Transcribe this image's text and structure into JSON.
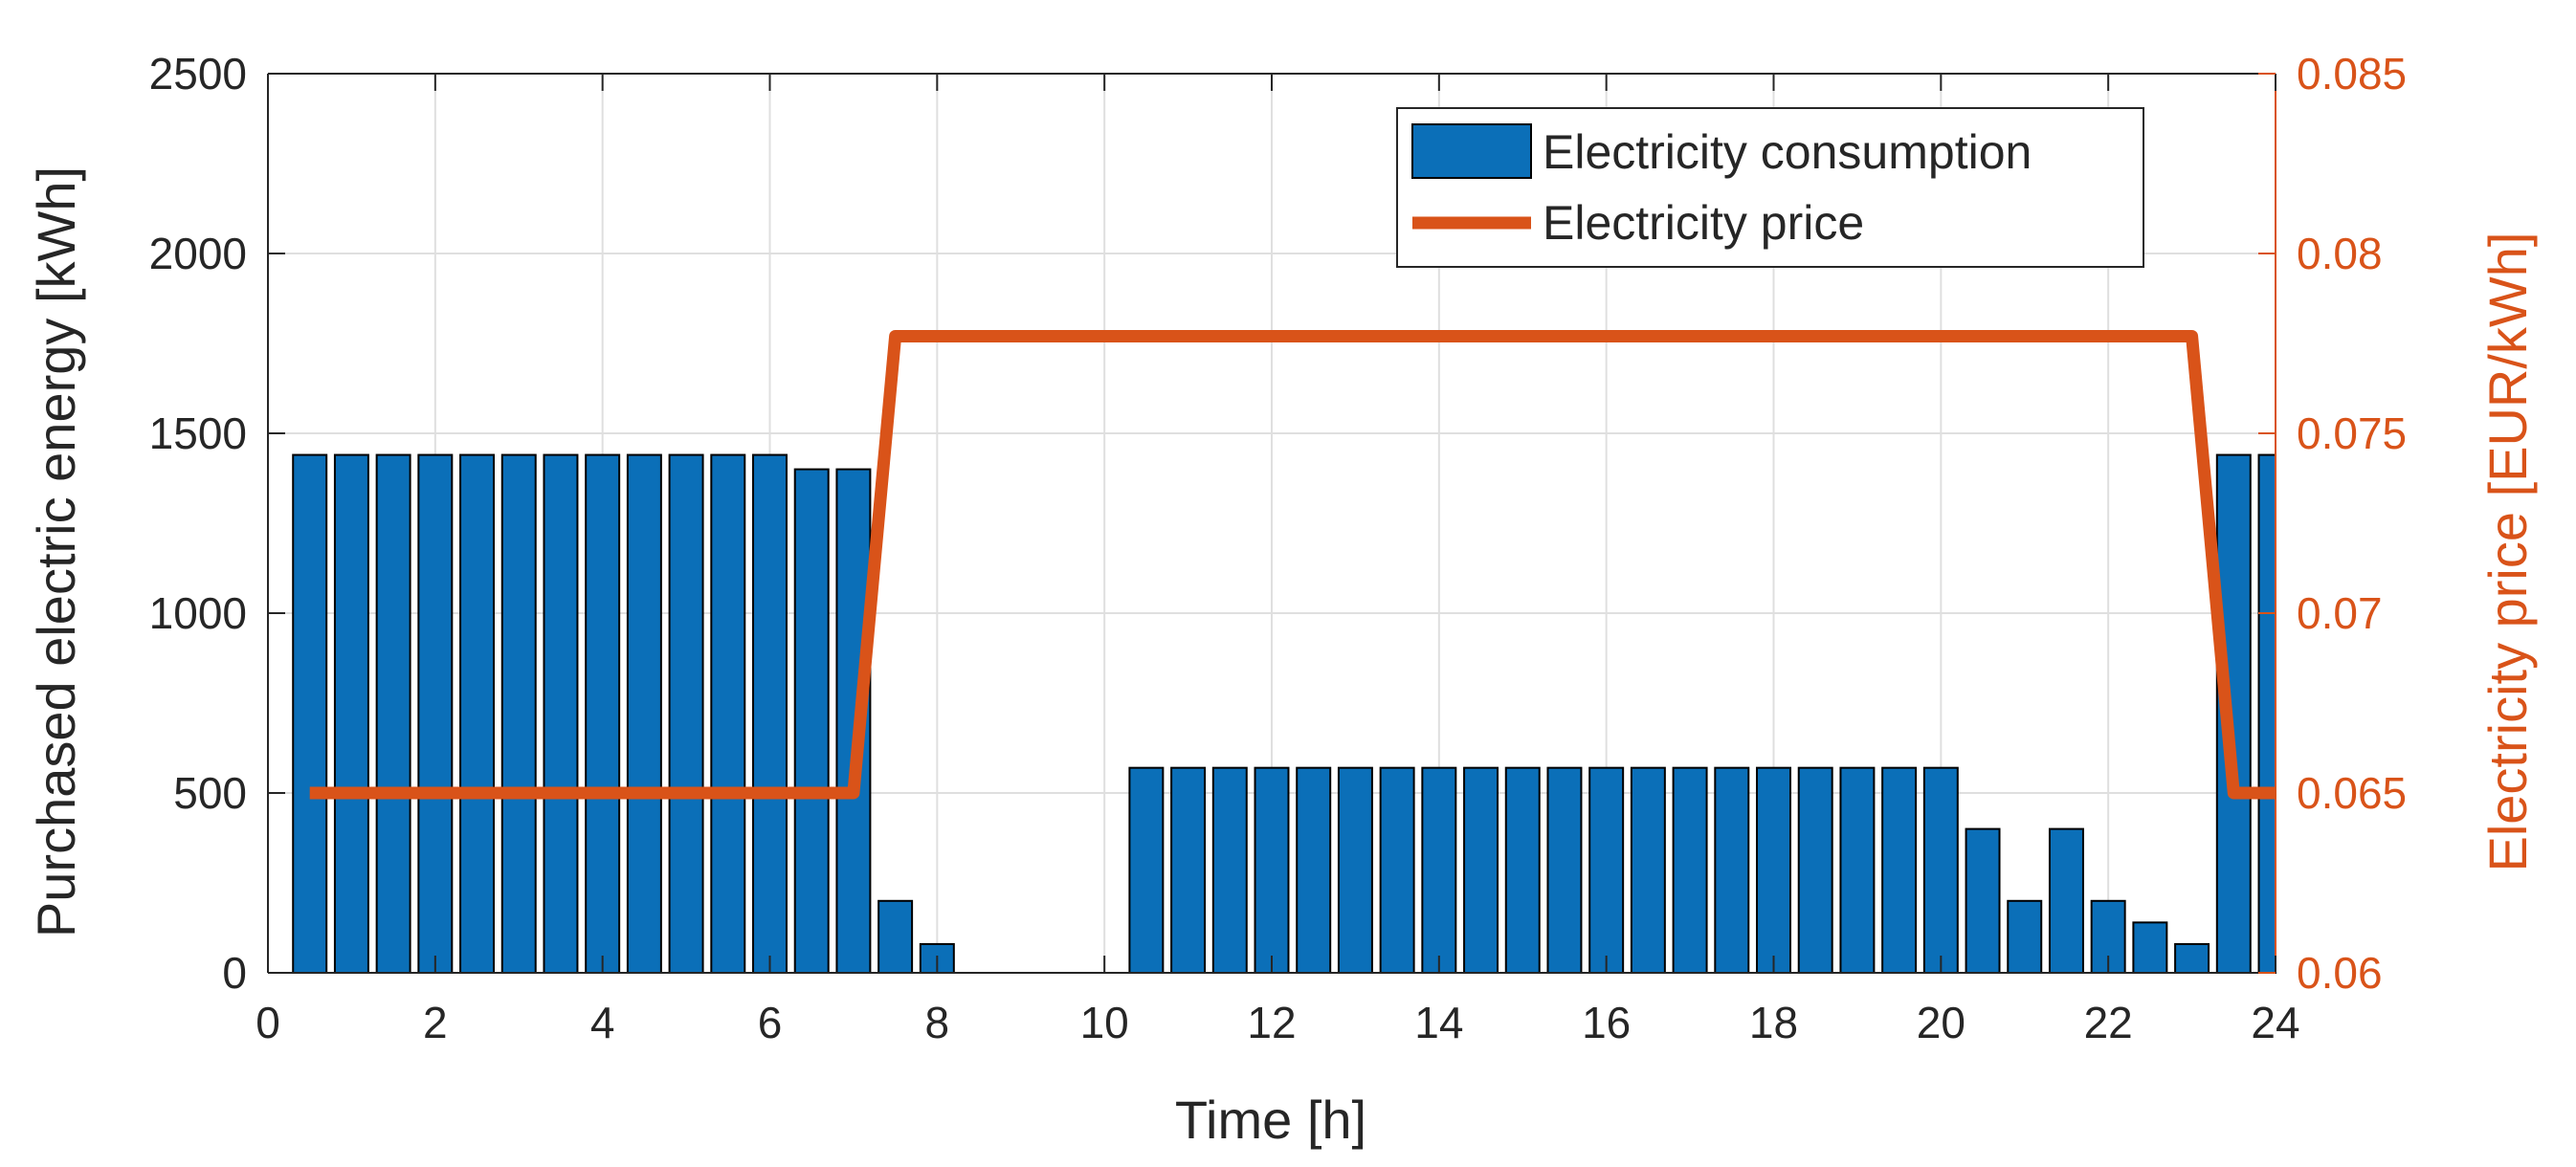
{
  "chart_data": {
    "type": "bar",
    "x": [
      0.5,
      1,
      1.5,
      2,
      2.5,
      3,
      3.5,
      4,
      4.5,
      5,
      5.5,
      6,
      6.5,
      7,
      7.5,
      8,
      8.5,
      9,
      9.5,
      10,
      10.5,
      11,
      11.5,
      12,
      12.5,
      13,
      13.5,
      14,
      14.5,
      15,
      15.5,
      16,
      16.5,
      17,
      17.5,
      18,
      18.5,
      19,
      19.5,
      20,
      20.5,
      21,
      21.5,
      22,
      22.5,
      23,
      23.5,
      24
    ],
    "series": [
      {
        "name": "Electricity consumption",
        "axis": "left",
        "kind": "bar",
        "color": "#0b6fb8",
        "values": [
          1440,
          1440,
          1440,
          1440,
          1440,
          1440,
          1440,
          1440,
          1440,
          1440,
          1440,
          1440,
          1400,
          1400,
          200,
          80,
          0,
          0,
          0,
          0,
          570,
          570,
          570,
          570,
          570,
          570,
          570,
          570,
          570,
          570,
          570,
          570,
          570,
          570,
          570,
          570,
          570,
          570,
          570,
          570,
          400,
          200,
          400,
          200,
          140,
          80,
          1440,
          1440
        ]
      },
      {
        "name": "Electricity price",
        "axis": "right",
        "kind": "line",
        "color": "#d95319",
        "x": [
          0.5,
          7,
          7.5,
          23,
          23.5,
          24
        ],
        "values": [
          0.065,
          0.065,
          0.0777,
          0.0777,
          0.065,
          0.065
        ]
      }
    ],
    "xlabel": "Time [h]",
    "ylabel": "Purchased electric energy [kWh]",
    "y2label": "Electricity price [EUR/kWh]",
    "xlim": [
      0,
      24
    ],
    "ylim": [
      0,
      2500
    ],
    "y2lim": [
      0.06,
      0.085
    ],
    "xticks": [
      0,
      2,
      4,
      6,
      8,
      10,
      12,
      14,
      16,
      18,
      20,
      22,
      24
    ],
    "xtick_labels": [
      "0",
      "2",
      "4",
      "6",
      "8",
      "10",
      "12",
      "14",
      "16",
      "18",
      "20",
      "22",
      "24"
    ],
    "yticks": [
      0,
      500,
      1000,
      1500,
      2000,
      2500
    ],
    "ytick_labels": [
      "0",
      "500",
      "1000",
      "1500",
      "2000",
      "2500"
    ],
    "y2ticks": [
      0.06,
      0.065,
      0.07,
      0.075,
      0.08,
      0.085
    ],
    "y2tick_labels": [
      "0.06",
      "0.065",
      "0.07",
      "0.075",
      "0.08",
      "0.085"
    ],
    "grid": true,
    "legend_position": "top-right",
    "left_axis_color": "#262626",
    "right_axis_color": "#d95319",
    "grid_color": "#dfdfdf"
  }
}
